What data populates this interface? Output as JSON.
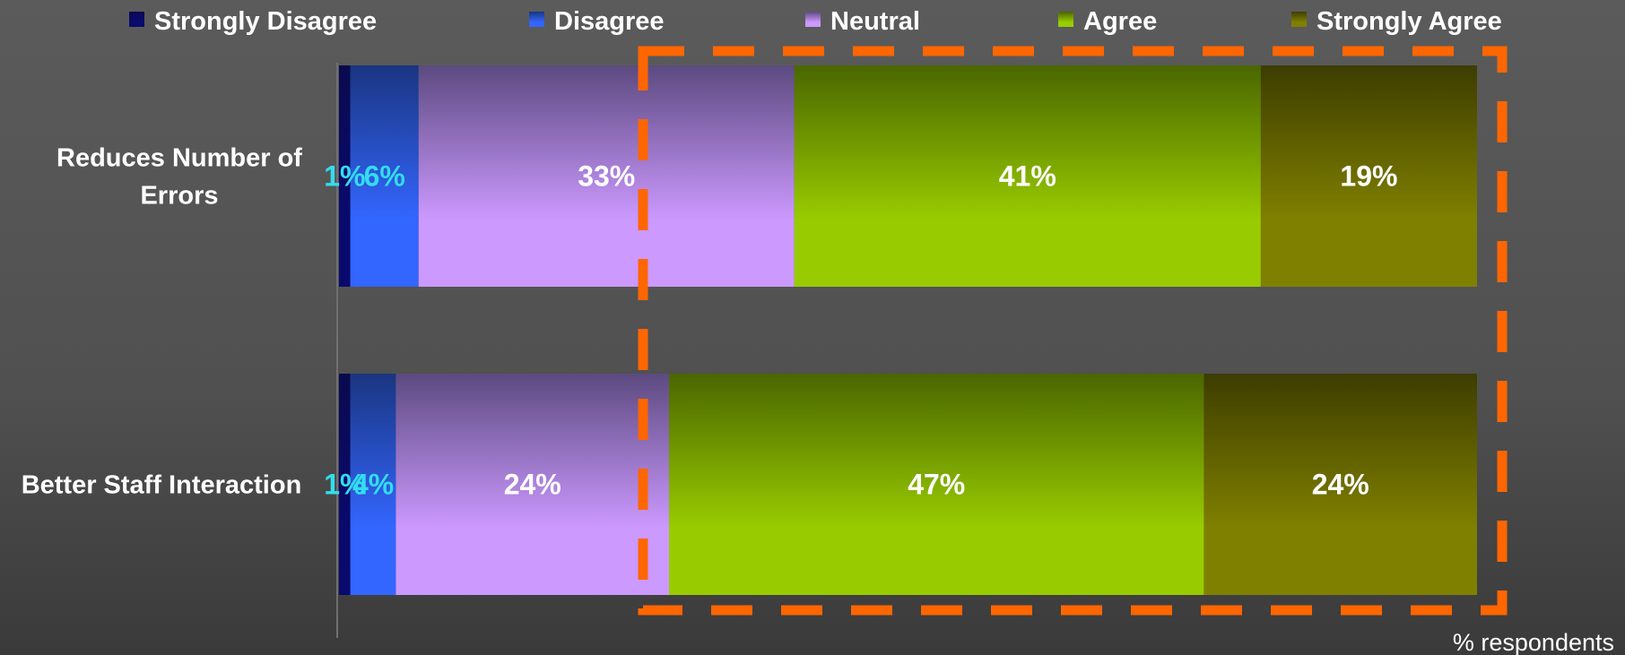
{
  "chart_data": {
    "type": "bar",
    "orientation": "horizontal",
    "stacked": true,
    "categories": [
      "Reduces Number of Errors",
      "Better Staff Interaction"
    ],
    "series": [
      {
        "name": "Strongly Disagree",
        "values": [
          1,
          1
        ],
        "labels": [
          "1%",
          "1%"
        ],
        "color": "#0a0a6e",
        "color_top": "#0a0a50",
        "label_color": "#33ddee"
      },
      {
        "name": "Disagree",
        "values": [
          6,
          4
        ],
        "labels": [
          "6%",
          "4%"
        ],
        "color": "#3366ff",
        "color_top": "#1a3580",
        "label_color": "#33ddee"
      },
      {
        "name": "Neutral",
        "values": [
          33,
          24
        ],
        "labels": [
          "33%",
          "24%"
        ],
        "color": "#cc99ff",
        "color_top": "#5c4a80",
        "label_color": "#ffffff"
      },
      {
        "name": "Agree",
        "values": [
          41,
          47
        ],
        "labels": [
          "41%",
          "47%"
        ],
        "color": "#99cc00",
        "color_top": "#4a6600",
        "label_color": "#ffffff"
      },
      {
        "name": "Strongly Agree",
        "values": [
          19,
          24
        ],
        "labels": [
          "19%",
          "24%"
        ],
        "color": "#808000",
        "color_top": "#3d3d00",
        "label_color": "#ffffff"
      }
    ],
    "xlabel": "% respondents",
    "ylabel": "",
    "xlim": [
      0,
      100
    ],
    "legend_position": "top",
    "grid": false,
    "annotation": "dashed-orange-highlight-box"
  }
}
